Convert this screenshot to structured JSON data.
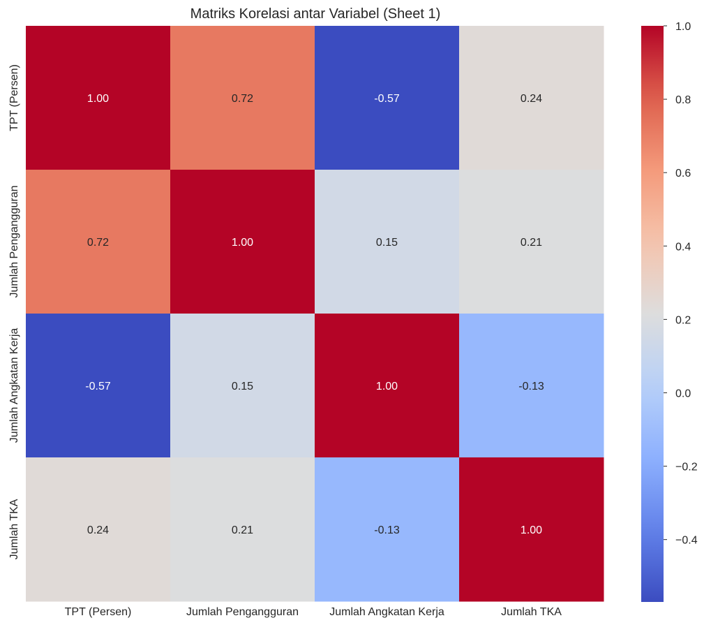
{
  "chart_data": {
    "type": "heatmap",
    "title": "Matriks Korelasi antar Variabel (Sheet 1)",
    "colormap": "coolwarm",
    "x_labels": [
      "TPT (Persen)",
      "Jumlah Pengangguran",
      "Jumlah Angkatan Kerja",
      "Jumlah TKA"
    ],
    "y_labels": [
      "TPT (Persen)",
      "Jumlah Pengangguran",
      "Jumlah Angkatan Kerja",
      "Jumlah TKA"
    ],
    "values": [
      [
        1.0,
        0.72,
        -0.57,
        0.24
      ],
      [
        0.72,
        1.0,
        0.15,
        0.21
      ],
      [
        -0.57,
        0.15,
        1.0,
        -0.13
      ],
      [
        0.24,
        0.21,
        -0.13,
        1.0
      ]
    ],
    "cell_labels": [
      [
        "1.00",
        "0.72",
        "-0.57",
        "0.24"
      ],
      [
        "0.72",
        "1.00",
        "0.15",
        "0.21"
      ],
      [
        "-0.57",
        "0.15",
        "1.00",
        "-0.13"
      ],
      [
        "0.24",
        "0.21",
        "-0.13",
        "1.00"
      ]
    ],
    "colorbar": {
      "vmin": -0.57,
      "vmax": 1.0,
      "ticks": [
        1.0,
        0.8,
        0.6,
        0.4,
        0.2,
        0.0,
        -0.2,
        -0.4
      ],
      "tick_labels": [
        "1.0",
        "0.8",
        "0.6",
        "0.4",
        "0.2",
        "0.0",
        "−0.2",
        "−0.4"
      ]
    }
  }
}
